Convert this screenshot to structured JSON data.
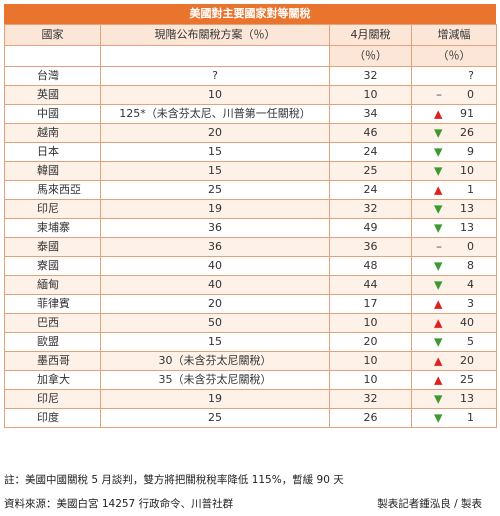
{
  "title": "美國對主要國家對等關稅",
  "headers": {
    "country": "國家",
    "current": "現階公布關稅方案（％）",
    "april_line1": "4月關稅",
    "april_line2": "（％）",
    "change_line1": "增減幅",
    "change_line2": "（％）"
  },
  "rows": [
    {
      "country": "台灣",
      "current": "?",
      "april": "32",
      "dir": "",
      "change": "?"
    },
    {
      "country": "英國",
      "current": "10",
      "april": "10",
      "dir": "none",
      "change": "0"
    },
    {
      "country": "中國",
      "current": "125*（未含芬太尼、川普第一任關稅）",
      "april": "34",
      "dir": "up",
      "change": "91"
    },
    {
      "country": "越南",
      "current": "20",
      "april": "46",
      "dir": "down",
      "change": "26"
    },
    {
      "country": "日本",
      "current": "15",
      "april": "24",
      "dir": "down",
      "change": "9"
    },
    {
      "country": "韓國",
      "current": "15",
      "april": "25",
      "dir": "down",
      "change": "10"
    },
    {
      "country": "馬來西亞",
      "current": "25",
      "april": "24",
      "dir": "up",
      "change": "1"
    },
    {
      "country": "印尼",
      "current": "19",
      "april": "32",
      "dir": "down",
      "change": "13"
    },
    {
      "country": "柬埔寨",
      "current": "36",
      "april": "49",
      "dir": "down",
      "change": "13"
    },
    {
      "country": "泰國",
      "current": "36",
      "april": "36",
      "dir": "none",
      "change": "0"
    },
    {
      "country": "寮國",
      "current": "40",
      "april": "48",
      "dir": "down",
      "change": "8"
    },
    {
      "country": "緬甸",
      "current": "40",
      "april": "44",
      "dir": "down",
      "change": "4"
    },
    {
      "country": "菲律賓",
      "current": "20",
      "april": "17",
      "dir": "up",
      "change": "3"
    },
    {
      "country": "巴西",
      "current": "50",
      "april": "10",
      "dir": "up",
      "change": "40"
    },
    {
      "country": "歐盟",
      "current": "15",
      "april": "20",
      "dir": "down",
      "change": "5"
    },
    {
      "country": "墨西哥",
      "current": "30（未含芬太尼關稅）",
      "april": "10",
      "dir": "up",
      "change": "20"
    },
    {
      "country": "加拿大",
      "current": "35（未含芬太尼關稅）",
      "april": "10",
      "dir": "up",
      "change": "25"
    },
    {
      "country": "印尼",
      "current": "19",
      "april": "32",
      "dir": "down",
      "change": "13"
    },
    {
      "country": "印度",
      "current": "25",
      "april": "26",
      "dir": "down",
      "change": "1"
    }
  ],
  "footnote": "註：美國中國關稅 5 月談判，雙方將把關稅稅率降低 115%，暫緩 90 天",
  "source": "資料來源：美國白宮 14257 行政命令、川普社群",
  "credit": "製表記者鍾泓良 / 製表",
  "colors": {
    "header": "#e8742d",
    "up": "#e02020",
    "down": "#3c9a2f",
    "stripe": "#fdf1e8"
  }
}
